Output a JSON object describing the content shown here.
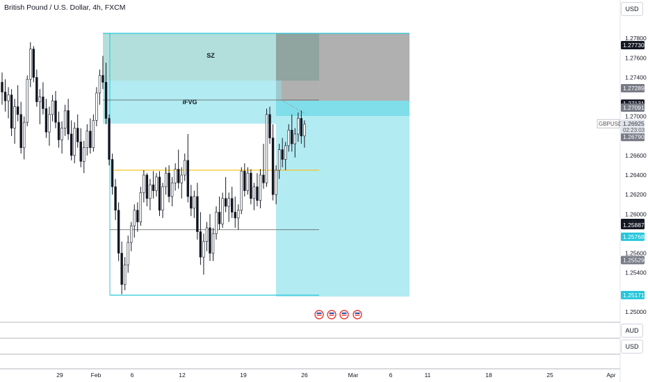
{
  "header": {
    "title": "British Pound / U.S. Dollar, 4h, FXCM"
  },
  "currency_buttons": {
    "main": "USD",
    "pane1": "AUD",
    "pane2": "USD"
  },
  "colors": {
    "up": "#131722",
    "down": "#131722",
    "cyan": "#26c6da",
    "cyan_fill": "#b2ebf2",
    "green_fill": "#b2dfdb",
    "grey_fill": "#b0b0b0",
    "yellow_line": "#f7c325",
    "dark_tag": "#131722",
    "grey_tag": "#787b86"
  },
  "annotations": {
    "sz": "SZ",
    "ifvg": "iFVG"
  },
  "chart_data": {
    "type": "candlestick",
    "title": "British Pound / U.S. Dollar, 4h, FXCM",
    "symbol": "GBPUSD",
    "y_ticks": [
      "1.27800",
      "1.27600",
      "1.27400",
      "1.27000",
      "1.26600",
      "1.26400",
      "1.26200",
      "1.26000",
      "1.25600",
      "1.25400",
      "1.25000"
    ],
    "x_ticks": [
      "29",
      "Feb",
      "6",
      "12",
      "19",
      "26",
      "Mar",
      "6",
      "11",
      "18",
      "25",
      "Apr"
    ],
    "price_tags": [
      {
        "label": "1.27730",
        "value": 1.2773,
        "style": "dark"
      },
      {
        "label": "1.27289",
        "value": 1.27289,
        "style": "grey"
      },
      {
        "label": "1.27131",
        "value": 1.27131,
        "style": "dark"
      },
      {
        "label": "1.27091",
        "value": 1.27091,
        "style": "grey"
      },
      {
        "label": "1.26790",
        "value": 1.2679,
        "style": "grey"
      },
      {
        "label": "1.25910",
        "value": 1.2591,
        "style": "dark"
      },
      {
        "label": "1.25887",
        "value": 1.25887,
        "style": "dark"
      },
      {
        "label": "1.25768",
        "value": 1.25768,
        "style": "cyan"
      },
      {
        "label": "1.25529",
        "value": 1.25529,
        "style": "grey"
      },
      {
        "label": "1.25171",
        "value": 1.25171,
        "style": "cyan"
      }
    ],
    "current": {
      "symbol": "GBPUSD",
      "price": "1.26925",
      "countdown": "02:23:03",
      "value": 1.26925
    },
    "ylim": [
      1.2485,
      1.2805
    ],
    "levels": {
      "yellow": 1.2645,
      "gray": 1.2584,
      "ifvg_line": 1.2709
    },
    "candles": [
      [
        1.2735,
        1.2745,
        1.2712,
        1.2725
      ],
      [
        1.2725,
        1.2738,
        1.2705,
        1.2716
      ],
      [
        1.2716,
        1.273,
        1.2698,
        1.2722
      ],
      [
        1.2722,
        1.2728,
        1.268,
        1.2688
      ],
      [
        1.2688,
        1.2718,
        1.2672,
        1.271
      ],
      [
        1.271,
        1.2732,
        1.2695,
        1.2702
      ],
      [
        1.2702,
        1.2715,
        1.2662,
        1.2668
      ],
      [
        1.2668,
        1.27,
        1.2656,
        1.2694
      ],
      [
        1.2694,
        1.2742,
        1.269,
        1.2738
      ],
      [
        1.2738,
        1.2776,
        1.273,
        1.2769
      ],
      [
        1.2769,
        1.2772,
        1.2735,
        1.274
      ],
      [
        1.274,
        1.2748,
        1.271,
        1.2715
      ],
      [
        1.2715,
        1.2728,
        1.2692,
        1.272
      ],
      [
        1.272,
        1.2735,
        1.2702,
        1.2708
      ],
      [
        1.2708,
        1.2718,
        1.2678,
        1.2684
      ],
      [
        1.2684,
        1.271,
        1.267,
        1.2702
      ],
      [
        1.2702,
        1.2722,
        1.2695,
        1.2716
      ],
      [
        1.2716,
        1.2726,
        1.2688,
        1.2694
      ],
      [
        1.2694,
        1.2705,
        1.2668,
        1.2676
      ],
      [
        1.2676,
        1.2695,
        1.2662,
        1.2688
      ],
      [
        1.2688,
        1.2712,
        1.268,
        1.2706
      ],
      [
        1.2706,
        1.2718,
        1.2676,
        1.2682
      ],
      [
        1.2682,
        1.2696,
        1.2655,
        1.266
      ],
      [
        1.266,
        1.2694,
        1.2652,
        1.2688
      ],
      [
        1.2688,
        1.2702,
        1.2668,
        1.2674
      ],
      [
        1.2674,
        1.2688,
        1.2648,
        1.2654
      ],
      [
        1.2654,
        1.2675,
        1.2642,
        1.2668
      ],
      [
        1.2668,
        1.2692,
        1.266,
        1.2685
      ],
      [
        1.2685,
        1.2698,
        1.2662,
        1.2668
      ],
      [
        1.2668,
        1.2702,
        1.2664,
        1.2696
      ],
      [
        1.2696,
        1.273,
        1.269,
        1.2724
      ],
      [
        1.2724,
        1.2748,
        1.2712,
        1.2742
      ],
      [
        1.2742,
        1.2762,
        1.2728,
        1.2735
      ],
      [
        1.2735,
        1.2755,
        1.2692,
        1.2698
      ],
      [
        1.2698,
        1.2702,
        1.265,
        1.2656
      ],
      [
        1.2656,
        1.2662,
        1.262,
        1.2628
      ],
      [
        1.2628,
        1.2636,
        1.2594,
        1.2604
      ],
      [
        1.2604,
        1.2612,
        1.2552,
        1.256
      ],
      [
        1.256,
        1.2572,
        1.2518,
        1.2528
      ],
      [
        1.2528,
        1.2556,
        1.2522,
        1.2548
      ],
      [
        1.2548,
        1.2578,
        1.254,
        1.2571
      ],
      [
        1.2571,
        1.2592,
        1.2562,
        1.2588
      ],
      [
        1.2588,
        1.261,
        1.2576,
        1.2604
      ],
      [
        1.2604,
        1.2612,
        1.2582,
        1.2592
      ],
      [
        1.2592,
        1.2628,
        1.2588,
        1.2622
      ],
      [
        1.2622,
        1.2645,
        1.2612,
        1.264
      ],
      [
        1.264,
        1.2642,
        1.2608,
        1.2616
      ],
      [
        1.2616,
        1.2636,
        1.2604,
        1.263
      ],
      [
        1.263,
        1.2644,
        1.2616,
        1.2624
      ],
      [
        1.2624,
        1.2642,
        1.2618,
        1.2638
      ],
      [
        1.2638,
        1.2644,
        1.2598,
        1.2604
      ],
      [
        1.2604,
        1.2632,
        1.2596,
        1.2628
      ],
      [
        1.2628,
        1.2648,
        1.262,
        1.2642
      ],
      [
        1.2642,
        1.265,
        1.2612,
        1.2618
      ],
      [
        1.2618,
        1.2638,
        1.2608,
        1.2632
      ],
      [
        1.2632,
        1.2652,
        1.2624,
        1.2646
      ],
      [
        1.2646,
        1.2666,
        1.2626,
        1.2632
      ],
      [
        1.2632,
        1.2648,
        1.2616,
        1.264
      ],
      [
        1.264,
        1.2662,
        1.2634,
        1.2655
      ],
      [
        1.2655,
        1.2682,
        1.2612,
        1.2618
      ],
      [
        1.2618,
        1.263,
        1.2598,
        1.2606
      ],
      [
        1.2606,
        1.2624,
        1.2596,
        1.2618
      ],
      [
        1.2618,
        1.2632,
        1.2574,
        1.2582
      ],
      [
        1.2582,
        1.2602,
        1.2548,
        1.2556
      ],
      [
        1.2556,
        1.258,
        1.2538,
        1.2572
      ],
      [
        1.2572,
        1.2592,
        1.2562,
        1.2586
      ],
      [
        1.2586,
        1.26,
        1.2552,
        1.256
      ],
      [
        1.256,
        1.2586,
        1.2552,
        1.258
      ],
      [
        1.258,
        1.2608,
        1.2574,
        1.2602
      ],
      [
        1.2602,
        1.2618,
        1.2584,
        1.259
      ],
      [
        1.259,
        1.2622,
        1.2586,
        1.2616
      ],
      [
        1.2616,
        1.2638,
        1.2602,
        1.2608
      ],
      [
        1.2608,
        1.2622,
        1.2592,
        1.2616
      ],
      [
        1.2616,
        1.2628,
        1.2596,
        1.2602
      ],
      [
        1.2602,
        1.2618,
        1.2586,
        1.2596
      ],
      [
        1.2596,
        1.261,
        1.2584,
        1.2604
      ],
      [
        1.2604,
        1.2648,
        1.26,
        1.2644
      ],
      [
        1.2644,
        1.2652,
        1.2618,
        1.2624
      ],
      [
        1.2624,
        1.2648,
        1.262,
        1.2642
      ],
      [
        1.2642,
        1.2646,
        1.261,
        1.2616
      ],
      [
        1.2616,
        1.2632,
        1.2604,
        1.2628
      ],
      [
        1.2628,
        1.2642,
        1.2608,
        1.2614
      ],
      [
        1.2614,
        1.2646,
        1.2606,
        1.264
      ],
      [
        1.264,
        1.2672,
        1.2626,
        1.2632
      ],
      [
        1.2632,
        1.2708,
        1.2628,
        1.2702
      ],
      [
        1.2702,
        1.271,
        1.2672,
        1.2678
      ],
      [
        1.2678,
        1.2692,
        1.2614,
        1.262
      ],
      [
        1.262,
        1.265,
        1.261,
        1.2645
      ],
      [
        1.2645,
        1.2672,
        1.2636,
        1.2666
      ],
      [
        1.2666,
        1.2678,
        1.2648,
        1.2656
      ],
      [
        1.2656,
        1.2674,
        1.2645,
        1.267
      ],
      [
        1.267,
        1.2692,
        1.2664,
        1.2686
      ],
      [
        1.2686,
        1.2702,
        1.2664,
        1.2672
      ],
      [
        1.2672,
        1.2688,
        1.2658,
        1.2682
      ],
      [
        1.2682,
        1.2704,
        1.2674,
        1.2698
      ],
      [
        1.2698,
        1.2706,
        1.2672,
        1.268
      ],
      [
        1.268,
        1.2696,
        1.2668,
        1.2692
      ]
    ]
  }
}
